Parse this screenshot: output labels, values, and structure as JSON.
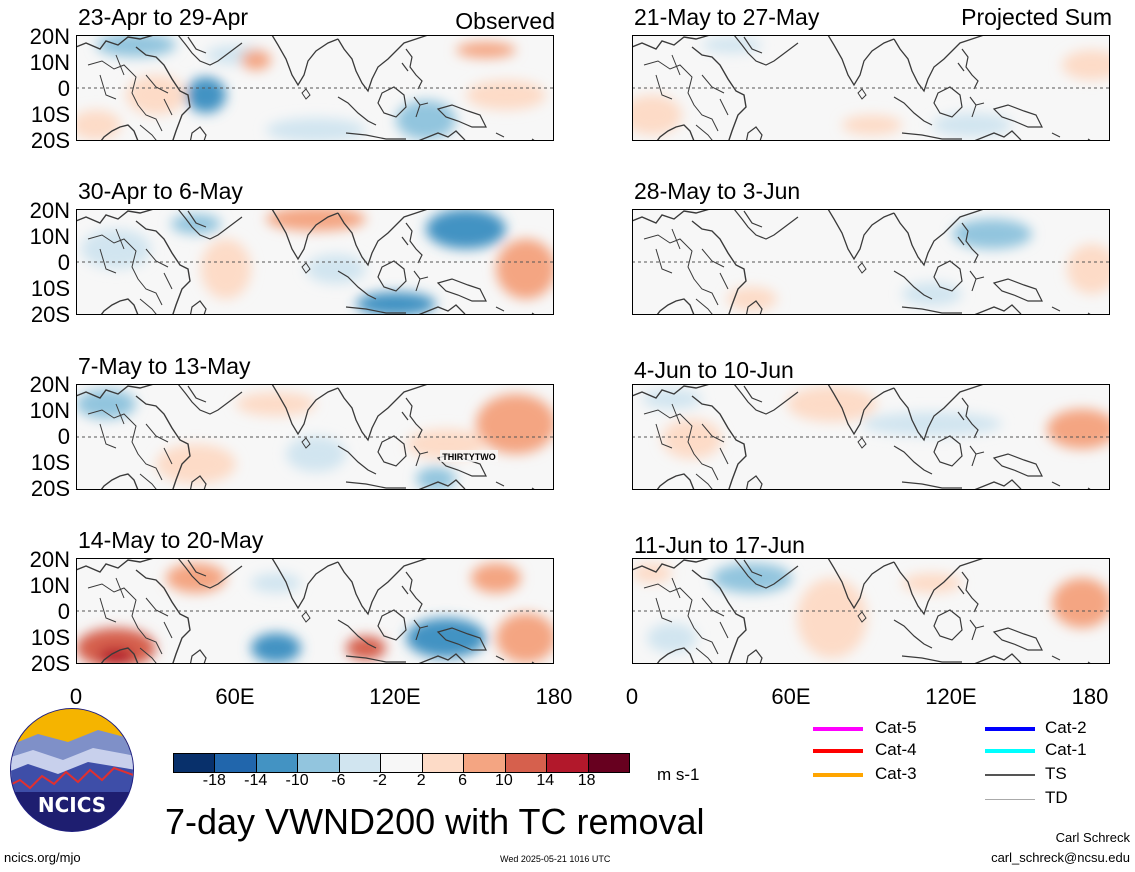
{
  "header": {
    "observed_label": "Observed",
    "projected_label": "Projected Sum"
  },
  "panels_left": [
    {
      "title": "23-Apr to 29-Apr"
    },
    {
      "title": "30-Apr to 6-May"
    },
    {
      "title": "7-May to 13-May"
    },
    {
      "title": "14-May to 20-May"
    }
  ],
  "panels_right": [
    {
      "title": "21-May to 27-May"
    },
    {
      "title": "28-May to 3-Jun"
    },
    {
      "title": "4-Jun to 10-Jun"
    },
    {
      "title": "11-Jun to 17-Jun"
    }
  ],
  "lat_labels": [
    "20N",
    "10N",
    "0",
    "10S",
    "20S"
  ],
  "lon_labels": [
    "0",
    "60E",
    "120E",
    "180"
  ],
  "storm_label": "THIRTYTWO",
  "colorbar": {
    "colors": [
      "#08306b",
      "#2166ac",
      "#4393c3",
      "#92c5de",
      "#d1e5f0",
      "#f7f7f7",
      "#fddbc7",
      "#f4a582",
      "#d6604d",
      "#b2182b",
      "#67001f"
    ],
    "labels": [
      "-18",
      "-14",
      "-10",
      "-6",
      "-2",
      "2",
      "6",
      "10",
      "14",
      "18"
    ],
    "units": "m s-1"
  },
  "legend": [
    {
      "label": "Cat-5",
      "color": "#ff00ff"
    },
    {
      "label": "Cat-4",
      "color": "#ff0000"
    },
    {
      "label": "Cat-3",
      "color": "#ffa500"
    },
    {
      "label": "Cat-2",
      "color": "#0000ff"
    },
    {
      "label": "Cat-1",
      "color": "#00ffff"
    },
    {
      "label": "TS",
      "color": "#555555"
    },
    {
      "label": "TD",
      "color": "#aaaaaa"
    }
  ],
  "logo_text": "NCICS",
  "main_title": "7-day VWND200 with TC removal",
  "footer": {
    "url": "ncics.org/mjo",
    "timestamp": "Wed 2025-05-21 1016 UTC",
    "author": "Carl Schreck",
    "email": "carl_schreck@ncsu.edu"
  }
}
